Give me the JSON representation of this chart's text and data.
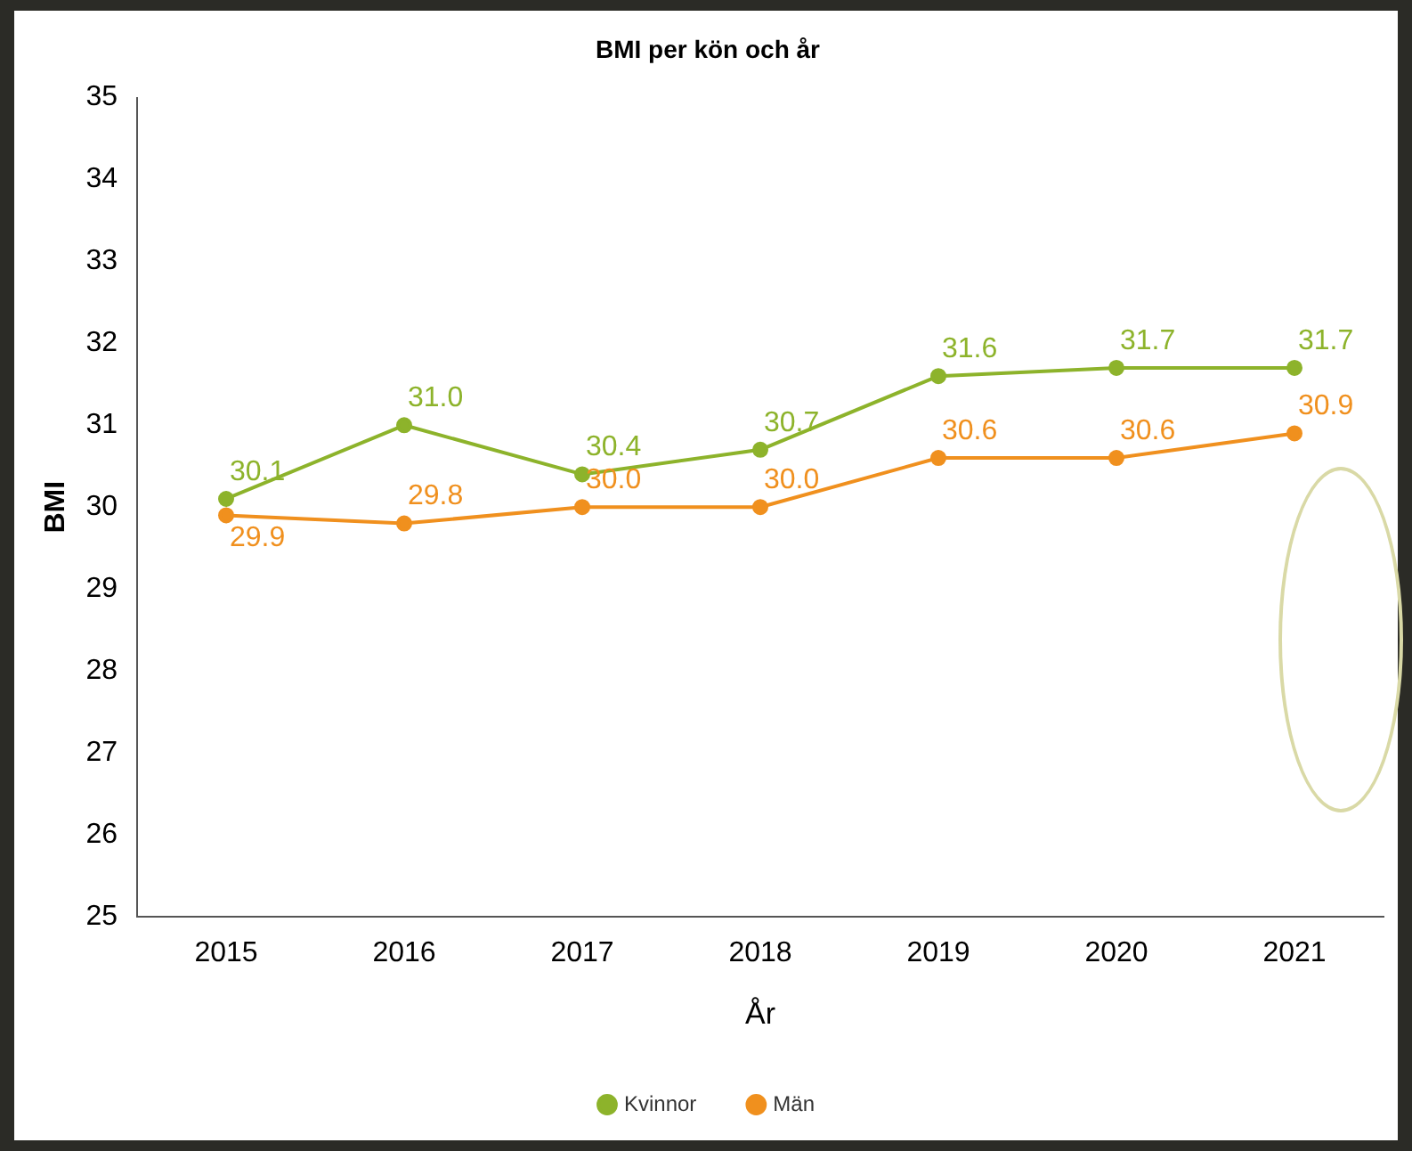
{
  "chart_data": {
    "type": "line",
    "title": "BMI per kön och år",
    "xlabel": "År",
    "ylabel": "BMI",
    "categories": [
      "2015",
      "2016",
      "2017",
      "2018",
      "2019",
      "2020",
      "2021"
    ],
    "series": [
      {
        "name": "Kvinnor",
        "color": "#8db32b",
        "values": [
          30.1,
          31.0,
          30.4,
          30.7,
          31.6,
          31.7,
          31.7
        ],
        "value_labels": [
          "30.1",
          "31.0",
          "30.4",
          "30.7",
          "31.6",
          "31.7",
          "31.7"
        ]
      },
      {
        "name": "Män",
        "color": "#f0901e",
        "values": [
          29.9,
          29.8,
          30.0,
          30.0,
          30.6,
          30.6,
          30.9
        ],
        "value_labels": [
          "29.9",
          "29.8",
          "30.0",
          "30.0",
          "30.6",
          "30.6",
          "30.9"
        ]
      }
    ],
    "ylim": [
      25,
      35
    ],
    "yticks": [
      25,
      26,
      27,
      28,
      29,
      30,
      31,
      32,
      33,
      34,
      35
    ],
    "grid": false,
    "legend": "bottom",
    "marker": "circle",
    "line_style": "solid"
  }
}
